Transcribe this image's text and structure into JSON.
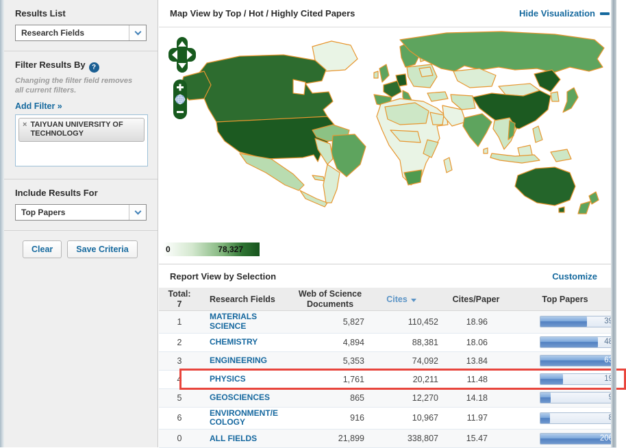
{
  "sidebar": {
    "results_list": {
      "label": "Results List",
      "selected": "Research Fields"
    },
    "filter": {
      "title": "Filter Results By",
      "help_icon": "?",
      "note": "Changing the filter field removes all current filters.",
      "add_filter": "Add Filter »",
      "tags": [
        {
          "remove_icon": "×",
          "label": "TAIYUAN UNIVERSITY OF TECHNOLOGY"
        }
      ]
    },
    "include_results": {
      "label": "Include Results For",
      "selected": "Top Papers"
    },
    "buttons": {
      "clear": "Clear",
      "save": "Save Criteria"
    }
  },
  "map_panel": {
    "title": "Map View by Top / Hot / Highly Cited Papers",
    "hide_link": "Hide Visualization",
    "legend": {
      "min": "0",
      "max": "78,327"
    },
    "icons": {
      "pan": "pan-arrows",
      "zoom_in": "+",
      "zoom_out": "−",
      "globe": "globe"
    },
    "colors": {
      "map_border": "#e7962f",
      "legend_dark": "#17541d",
      "legend_light": "#ffffff"
    }
  },
  "report": {
    "title": "Report View by Selection",
    "customize_link": "Customize",
    "columns": {
      "total_line1": "Total:",
      "total_line2": "7",
      "research_fields": "Research Fields",
      "wos_line1": "Web of Science",
      "wos_line2": "Documents",
      "cites": "Cites",
      "cites_per_paper": "Cites/Paper",
      "top_papers": "Top Papers"
    },
    "sorted_column": "Cites",
    "rows": [
      {
        "rank": "1",
        "field": "MATERIALS SCIENCE",
        "wos_documents": "5,827",
        "cites": "110,452",
        "cites_per_paper": "18.96",
        "top_papers": "39",
        "bar_pct": 62,
        "highlighted": false
      },
      {
        "rank": "2",
        "field": "CHEMISTRY",
        "wos_documents": "4,894",
        "cites": "88,381",
        "cites_per_paper": "18.06",
        "top_papers": "48",
        "bar_pct": 76,
        "highlighted": false
      },
      {
        "rank": "3",
        "field": "ENGINEERING",
        "wos_documents": "5,353",
        "cites": "74,092",
        "cites_per_paper": "13.84",
        "top_papers": "63",
        "bar_pct": 100,
        "highlighted": false
      },
      {
        "rank": "4",
        "field": "PHYSICS",
        "wos_documents": "1,761",
        "cites": "20,211",
        "cites_per_paper": "11.48",
        "top_papers": "19",
        "bar_pct": 30,
        "highlighted": true
      },
      {
        "rank": "5",
        "field": "GEOSCIENCES",
        "wos_documents": "865",
        "cites": "12,270",
        "cites_per_paper": "14.18",
        "top_papers": "9",
        "bar_pct": 14,
        "highlighted": false
      },
      {
        "rank": "6",
        "field": "ENVIRONMENT/ECOLOGY",
        "wos_documents": "916",
        "cites": "10,967",
        "cites_per_paper": "11.97",
        "top_papers": "8",
        "bar_pct": 13,
        "highlighted": false
      },
      {
        "rank": "0",
        "field": "ALL FIELDS",
        "wos_documents": "21,899",
        "cites": "338,807",
        "cites_per_paper": "15.47",
        "top_papers": "206",
        "bar_pct": 100,
        "highlighted": false
      }
    ],
    "colors": {
      "link_blue": "#15699e",
      "highlight_red": "#e8453c",
      "bar_blue": "#5181c1"
    }
  }
}
